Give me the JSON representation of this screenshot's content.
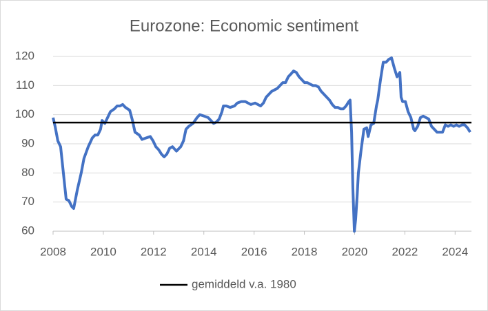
{
  "chart_data": {
    "type": "line",
    "title": "Eurozone: Economic sentiment",
    "series": [
      {
        "color": "#4472c4",
        "x": [
          2008.0,
          2008.08,
          2008.19,
          2008.3,
          2008.41,
          2008.52,
          2008.63,
          2008.74,
          2008.82,
          2008.96,
          2009.12,
          2009.23,
          2009.4,
          2009.56,
          2009.67,
          2009.78,
          2009.89,
          2009.95,
          2010.06,
          2010.17,
          2010.28,
          2010.44,
          2010.55,
          2010.66,
          2010.77,
          2010.88,
          2011.05,
          2011.16,
          2011.26,
          2011.43,
          2011.54,
          2011.7,
          2011.87,
          2011.98,
          2012.09,
          2012.2,
          2012.31,
          2012.42,
          2012.53,
          2012.64,
          2012.75,
          2012.91,
          2013.08,
          2013.19,
          2013.29,
          2013.4,
          2013.57,
          2013.73,
          2013.84,
          2014.01,
          2014.17,
          2014.28,
          2014.39,
          2014.5,
          2014.61,
          2014.72,
          2014.78,
          2014.89,
          2015.05,
          2015.22,
          2015.33,
          2015.49,
          2015.65,
          2015.76,
          2015.87,
          2016.04,
          2016.15,
          2016.26,
          2016.37,
          2016.48,
          2016.59,
          2016.7,
          2016.81,
          2016.92,
          2017.03,
          2017.14,
          2017.25,
          2017.36,
          2017.47,
          2017.57,
          2017.68,
          2017.79,
          2017.9,
          2018.01,
          2018.12,
          2018.23,
          2018.34,
          2018.45,
          2018.56,
          2018.67,
          2018.78,
          2018.89,
          2019.0,
          2019.11,
          2019.22,
          2019.33,
          2019.44,
          2019.55,
          2019.66,
          2019.77,
          2019.82,
          2019.88,
          2019.93,
          2019.99,
          2020.04,
          2020.1,
          2020.15,
          2020.26,
          2020.37,
          2020.48,
          2020.54,
          2020.65,
          2020.76,
          2020.87,
          2020.92,
          2021.03,
          2021.14,
          2021.25,
          2021.36,
          2021.47,
          2021.58,
          2021.69,
          2021.8,
          2021.85,
          2021.91,
          2022.02,
          2022.13,
          2022.24,
          2022.35,
          2022.4,
          2022.51,
          2022.62,
          2022.73,
          2022.84,
          2022.95,
          2023.06,
          2023.17,
          2023.28,
          2023.39,
          2023.5,
          2023.61,
          2023.72,
          2023.83,
          2023.94,
          2024.05,
          2024.16,
          2024.27,
          2024.38,
          2024.49,
          2024.6
        ],
        "values": [
          99,
          96,
          91,
          89,
          80,
          71,
          70.5,
          68.5,
          67.8,
          74,
          80,
          85,
          89,
          92,
          93,
          93,
          95,
          98,
          97,
          99,
          101,
          102,
          103,
          103,
          103.5,
          102.5,
          101.5,
          98,
          94,
          93,
          91.5,
          92,
          92.5,
          91,
          89,
          88,
          86.5,
          85.5,
          86.5,
          88.5,
          89,
          87.5,
          89,
          91,
          95,
          96,
          97,
          99,
          100,
          99.5,
          99,
          98,
          97,
          97.5,
          98.5,
          101,
          103,
          103,
          102.5,
          103,
          104,
          104.5,
          104.5,
          104,
          103.5,
          104,
          103.5,
          103,
          104,
          106,
          107,
          108,
          108.5,
          109,
          110,
          111,
          111,
          113,
          114,
          115,
          114.5,
          113,
          112,
          111,
          111,
          110.5,
          110,
          110,
          109.5,
          108,
          107,
          106,
          105,
          103.5,
          102.5,
          102.5,
          102,
          102,
          103,
          104.5,
          105,
          94,
          75,
          60,
          64,
          72,
          80,
          88,
          95,
          95.5,
          92.5,
          96.5,
          97,
          103,
          105,
          112,
          118,
          118,
          119,
          119.5,
          116,
          113,
          114.5,
          106,
          104.5,
          104.5,
          101,
          99,
          95,
          94.5,
          96,
          99,
          99.5,
          99,
          98.5,
          96,
          95,
          94,
          94,
          94,
          96.5,
          96,
          96.5,
          96,
          96.5,
          96,
          96.5,
          96.5,
          95.5,
          94
        ]
      },
      {
        "name": "gemiddeld v.a. 1980",
        "color": "#000000",
        "x": [
          2008,
          2024.65
        ],
        "values": [
          97.3,
          97.3
        ]
      }
    ],
    "xlim": [
      2008,
      2024.65
    ],
    "xticks": [
      2008,
      2010,
      2012,
      2014,
      2016,
      2018,
      2020,
      2022,
      2024
    ],
    "ylim": [
      60,
      120
    ],
    "yticks": [
      60,
      70,
      80,
      90,
      100,
      110,
      120
    ],
    "grid": true,
    "legend": "bottom"
  }
}
